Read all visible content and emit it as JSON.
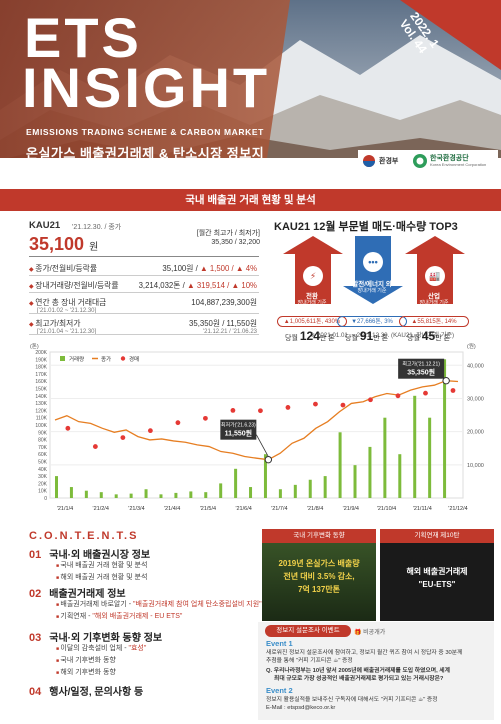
{
  "cover": {
    "title_line1": "ETS",
    "title_line2": "INSIGHT",
    "subtitle_en": "EMISSIONS TRADING SCHEME & CARBON MARKET",
    "subtitle_ko": "온실가스 배출권거래제 & 탄소시장 정보지",
    "year": "2022. 1",
    "volume": "Vol. 44",
    "logo_ministry": "환경부",
    "logo_corp": "한국환경공단",
    "logo_corp_en": "Korea Environment Corporation"
  },
  "section_bar": "국내 배출권 거래 현황 및 분석",
  "kau": {
    "name": "KAU21",
    "date": "'21.12.30. / 종가",
    "price": "35,100",
    "unit": "원",
    "range_label": "[월간 최고가 / 최저가]",
    "range_value": "35,350 / 32,200",
    "rows": [
      {
        "label": "종가/전월비/등락률",
        "value_plain": "35,100원 / ",
        "value_red": "▲ 1,500 / ▲ 4%"
      },
      {
        "label": "장내거래량/전월비/등락률",
        "value_plain": "3,214,032톤 / ",
        "value_red": "▲ 319,514 / ▲ 10%"
      },
      {
        "label": "연간 총 장내 거래대금",
        "sub": "['21.01.02 ~ '21.12.30]",
        "value_plain": "104,887,239,300원"
      },
      {
        "label": "최고가/최저가",
        "sub": "['21.01.04 ~ '21.12.30]",
        "value_plain": "35,350원 / 11,550원",
        "value_sub": "'21.12.21 / '21.06.23"
      }
    ]
  },
  "top3": {
    "title": "KAU21 12월 부문별 매도·매수량 TOP3",
    "items": [
      {
        "name": "전환",
        "sub": "장내거래 기준",
        "change": "▲1,005,611톤, 430%",
        "amount": "124",
        "unit_prefix": "당월",
        "unit": "만 톤"
      },
      {
        "name": "발전/에너지 외",
        "sub": "장내거래 기준",
        "change": "▼27,666톤, 3%",
        "amount": "91",
        "unit_prefix": "당월",
        "unit": "만 톤"
      },
      {
        "name": "산업",
        "sub": "장내거래 기준",
        "change": "▲55,815톤, 14%",
        "amount": "45",
        "unit_prefix": "당월",
        "unit": "만 톤"
      }
    ]
  },
  "chart_note": "※ 2021.01.01. ~ 2021.12.30. (KAU21, 장내거래 기준)",
  "chart_data": {
    "type": "bar",
    "ylabel_left": "(톤)",
    "ylabel_right": "(원)",
    "legend": [
      "거래량",
      "종가",
      "경매"
    ],
    "y_left_ticks": [
      "200K",
      "190K",
      "180K",
      "170K",
      "160K",
      "150K",
      "140K",
      "130K",
      "120K",
      "110K",
      "100K",
      "90K",
      "80K",
      "70K",
      "60K",
      "50K",
      "40K",
      "30K",
      "20K",
      "10K",
      "0"
    ],
    "y_right_ticks": [
      "40,000",
      "30,000",
      "20,000",
      "10,000"
    ],
    "x_ticks": [
      "'21/1/4",
      "'21/2/4",
      "'21/3/4",
      "'21/4/4",
      "'21/5/4",
      "'21/6/4",
      "'21/7/4",
      "'21/8/4",
      "'21/9/4",
      "'21/10/4",
      "'21/11/4",
      "'21/12/4"
    ],
    "close_values": [
      23500,
      24800,
      23000,
      22500,
      21000,
      19800,
      20500,
      18500,
      17500,
      17800,
      17200,
      16800,
      16000,
      15500,
      14000,
      13500,
      12500,
      12000,
      11550,
      13500,
      16500,
      18000,
      21000,
      23000,
      26000,
      28500,
      29000,
      30500,
      31500,
      31000,
      32500,
      33500,
      34000,
      35350,
      35100
    ],
    "auction_values": [
      21000,
      15500,
      18200,
      20300,
      22700,
      24000,
      26400,
      26300,
      27300,
      28300,
      28000,
      29600,
      30800,
      31600,
      32400
    ],
    "volume_values": [
      30000,
      15000,
      10000,
      8000,
      5000,
      6000,
      12000,
      5000,
      7000,
      9000,
      8000,
      20000,
      40000,
      15000,
      60000,
      12000,
      18000,
      25000,
      30000,
      90000,
      45000,
      70000,
      110000,
      60000,
      140000,
      110000,
      190000
    ],
    "annotations": [
      {
        "label": "최저가('21.6.23)",
        "value": "11,550원"
      },
      {
        "label": "최고가('21.12.21)",
        "value": "35,350원"
      }
    ]
  },
  "contents": {
    "heading": "C.O.N.T.E.N.T.S",
    "sections": [
      {
        "num": "01",
        "title": "국내·외 배출권시장 정보",
        "items": [
          {
            "text": "국내 배출권 거래 현황 및 분석"
          },
          {
            "text": "해외 배출권 거래 현황 및 분석"
          }
        ]
      },
      {
        "num": "02",
        "title": "배출권거래제 정보",
        "items": [
          {
            "text": "배출권거래제 바로알기 - ",
            "hl": "\"배출권거래제 참여 업체 탄소중립설비 지원\""
          },
          {
            "text": "기획연재 - ",
            "hl": "\"해외 배출권거래제 - EU ETS\""
          }
        ]
      },
      {
        "num": "03",
        "title": "국내·외 기후변화 동향 정보",
        "items": [
          {
            "text": "이달의 감축설비 업체 - ",
            "hl": "\"효성\""
          },
          {
            "text": "국내 기후변화 동향"
          },
          {
            "text": "해외 기후변화 동향"
          }
        ]
      },
      {
        "num": "04",
        "title": "행사/일정, 문의사항 등",
        "items": []
      }
    ]
  },
  "cards": [
    {
      "header": "국내 기후변화 동향",
      "lines": [
        "2019년 온실가스 배출량",
        "전년 대비 3.5% 감소,",
        "7억 137만톤"
      ]
    },
    {
      "header": "기획연재 제10탄",
      "lines": [
        "해외 배출권거래제",
        "\"EU-ETS\""
      ]
    }
  ],
  "event": {
    "header": "정보지 설문조사 이벤트",
    "badge": "비공개가",
    "e1_title": "Event 1",
    "e1_lines": [
      "새로워진 정보지 설문조사에 참여하고, 정보지 월간 퀴즈 참여 시 정답자 중 30분께",
      "추첨을 통해 \"커피 기프티콘 ☕\" 증정",
      "Q. 우리나라정부는 10년 앞서 2005년에 배출권거래제를 도입 하였으며, 세계",
      "최대 규모로 가장 성공적인 배출권거래제로 평가되고 있는 거래시장은?"
    ],
    "e2_title": "Event 2",
    "e2_lines": [
      "정보지 활용실적을 보내주신 구독자에 대해서도 \"커피 기프티콘 ☕\" 증정",
      "E-Mail : etspsd@keco.or.kr"
    ]
  },
  "colors": {
    "accent": "#c0392b",
    "volume": "#7dbb3b",
    "close": "#e67e22",
    "auction": "#e53935"
  }
}
